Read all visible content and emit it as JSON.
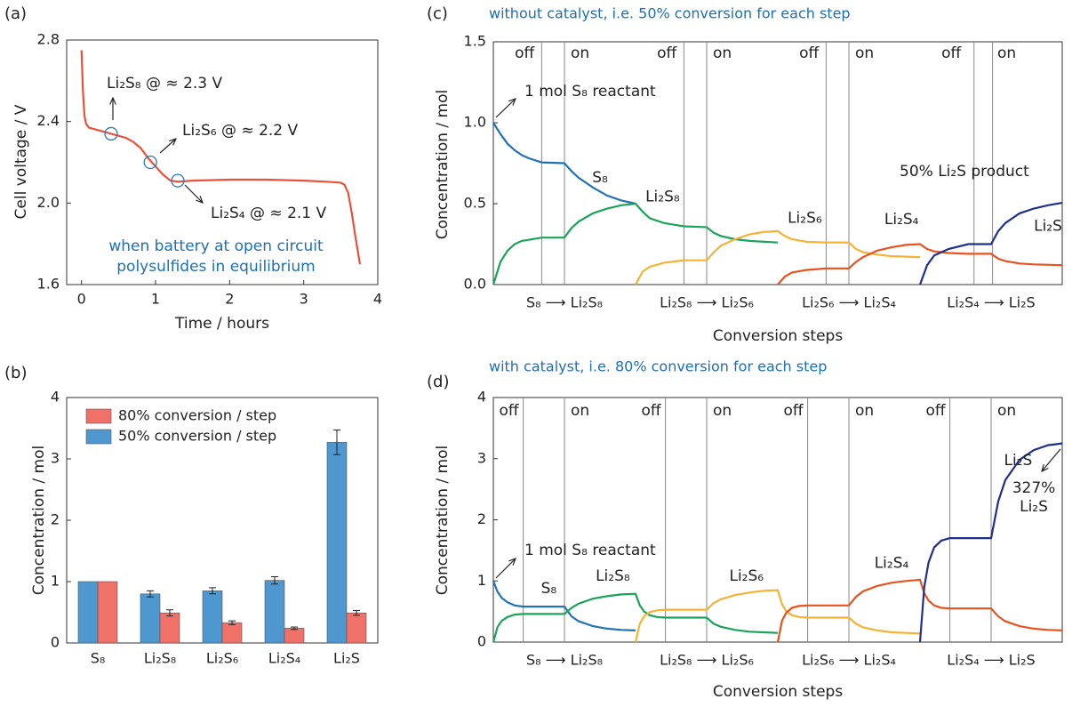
{
  "chart_data": [
    {
      "type": "line",
      "panel_label": "(a)",
      "xlabel": "Time / hours",
      "ylabel": "Cell voltage / V",
      "xlim": [
        -0.2,
        4
      ],
      "ylim": [
        1.6,
        2.8
      ],
      "xticks": [
        0,
        1,
        2,
        3,
        4
      ],
      "yticks": [
        1.6,
        {
          "value": 2.0,
          "label": "2.0"
        },
        2.4,
        2.8
      ],
      "series": [
        {
          "color": "#e8513a",
          "x": [
            0,
            0.02,
            0.04,
            0.06,
            0.1,
            0.2,
            0.3,
            0.4,
            0.5,
            0.6,
            0.7,
            0.8,
            0.9,
            1.0,
            1.1,
            1.2,
            1.3,
            1.5,
            2.0,
            2.5,
            3.0,
            3.3,
            3.5,
            3.55,
            3.6,
            3.65,
            3.7,
            3.76
          ],
          "values": [
            2.75,
            2.55,
            2.43,
            2.39,
            2.37,
            2.36,
            2.35,
            2.34,
            2.33,
            2.32,
            2.3,
            2.27,
            2.22,
            2.18,
            2.14,
            2.11,
            2.105,
            2.11,
            2.115,
            2.115,
            2.11,
            2.105,
            2.1,
            2.09,
            2.05,
            1.95,
            1.83,
            1.7
          ]
        }
      ],
      "markers": {
        "color": "#2a7ab8",
        "x": [
          0.4,
          0.93,
          1.3
        ],
        "values": [
          2.34,
          2.2,
          2.11
        ]
      },
      "annotations": [
        "Li₂S₈ @ ≈ 2.3 V",
        "Li₂S₆ @ ≈ 2.2 V",
        "Li₂S₄ @ ≈ 2.1 V",
        "when battery at open circuit",
        "polysulfides in equilibrium"
      ]
    },
    {
      "type": "bar",
      "panel_label": "(b)",
      "ylabel": "Concentration / mol",
      "categories": [
        "S₈",
        "Li₂S₈",
        "Li₂S₆",
        "Li₂S₄",
        "Li₂S"
      ],
      "ylim": [
        0,
        4
      ],
      "yticks": [
        0,
        1,
        2,
        3,
        4
      ],
      "legend": "upper left",
      "series": [
        {
          "name": "50% conversion / step",
          "color": "#4f97cf",
          "values": [
            1.0,
            0.8,
            0.85,
            1.02,
            3.27
          ],
          "errors": [
            null,
            0.05,
            0.05,
            0.06,
            0.2
          ]
        },
        {
          "name": "80% conversion / step",
          "color": "#f07168",
          "values": [
            1.0,
            0.49,
            0.33,
            0.24,
            0.49
          ],
          "errors": [
            null,
            0.05,
            0.03,
            0.02,
            0.04
          ]
        }
      ]
    },
    {
      "type": "line",
      "panel_label": "(c)",
      "subtitle": "without catalyst, i.e. 50% conversion for each step",
      "xlabel": "Conversion steps",
      "ylabel": "Concentration / mol",
      "xlim": [
        0,
        4
      ],
      "ylim": [
        0,
        1.5
      ],
      "yticks": [
        {
          "value": 0,
          "label": "0.0"
        },
        0.5,
        {
          "value": 1,
          "label": "1.0"
        },
        1.5
      ],
      "dividers": [
        0.34,
        0.5,
        1.34,
        1.5,
        2.34,
        2.5,
        3.38,
        3.51
      ],
      "phases": [
        "off",
        "on",
        "off",
        "on",
        "off",
        "on",
        "off",
        "on"
      ],
      "step_labels": [
        "S₈ ⟶ Li₂S₈",
        "Li₂S₈ ⟶ Li₂S₆",
        "Li₂S₆ ⟶ Li₂S₄",
        "Li₂S₄ ⟶ Li₂S"
      ],
      "series": [
        {
          "name": "S₈",
          "color": "#2272b5",
          "x": [
            0,
            0.05,
            0.1,
            0.15,
            0.2,
            0.25,
            0.34,
            0.5,
            0.55,
            0.6,
            0.7,
            0.8,
            0.9,
            1.0
          ],
          "values": [
            1.0,
            0.93,
            0.87,
            0.83,
            0.8,
            0.78,
            0.755,
            0.75,
            0.7,
            0.66,
            0.6,
            0.55,
            0.52,
            0.5
          ]
        },
        {
          "name": "Li₂S₈",
          "color": "#1aa35a",
          "x": [
            0,
            0.05,
            0.1,
            0.15,
            0.2,
            0.34,
            0.5,
            0.55,
            0.6,
            0.7,
            0.8,
            0.9,
            1.0,
            1.05,
            1.1,
            1.2,
            1.34,
            1.5,
            1.55,
            1.6,
            1.7,
            1.8,
            2.0
          ],
          "values": [
            0,
            0.14,
            0.21,
            0.25,
            0.27,
            0.29,
            0.29,
            0.35,
            0.39,
            0.44,
            0.47,
            0.49,
            0.5,
            0.45,
            0.41,
            0.38,
            0.36,
            0.355,
            0.32,
            0.3,
            0.28,
            0.27,
            0.26
          ]
        },
        {
          "name": "Li₂S₆",
          "color": "#f5b335",
          "x": [
            1.0,
            1.05,
            1.1,
            1.2,
            1.34,
            1.5,
            1.55,
            1.6,
            1.7,
            1.8,
            1.9,
            2.0,
            2.05,
            2.1,
            2.2,
            2.34,
            2.5,
            2.55,
            2.6,
            2.7,
            2.8,
            3.0
          ],
          "values": [
            0,
            0.08,
            0.11,
            0.135,
            0.15,
            0.15,
            0.2,
            0.24,
            0.28,
            0.31,
            0.325,
            0.33,
            0.3,
            0.28,
            0.265,
            0.26,
            0.26,
            0.22,
            0.2,
            0.185,
            0.175,
            0.17
          ]
        },
        {
          "name": "Li₂S₄",
          "color": "#e5531f",
          "x": [
            2.0,
            2.05,
            2.1,
            2.2,
            2.34,
            2.5,
            2.55,
            2.6,
            2.7,
            2.8,
            2.9,
            3.0,
            3.05,
            3.1,
            3.2,
            3.34,
            3.5,
            3.55,
            3.6,
            3.7,
            3.8,
            4.0
          ],
          "values": [
            0,
            0.05,
            0.075,
            0.09,
            0.1,
            0.1,
            0.14,
            0.17,
            0.21,
            0.23,
            0.245,
            0.25,
            0.22,
            0.205,
            0.195,
            0.19,
            0.19,
            0.16,
            0.145,
            0.13,
            0.125,
            0.12
          ]
        },
        {
          "name": "Li₂S",
          "color": "#1f2f8a",
          "x": [
            3.0,
            3.05,
            3.1,
            3.2,
            3.34,
            3.5,
            3.55,
            3.6,
            3.7,
            3.8,
            3.9,
            4.0
          ],
          "values": [
            0,
            0.12,
            0.18,
            0.22,
            0.25,
            0.25,
            0.33,
            0.38,
            0.44,
            0.47,
            0.49,
            0.505
          ]
        }
      ],
      "annotations": [
        "1 mol S₈ reactant",
        "50% Li₂S product"
      ]
    },
    {
      "type": "line",
      "panel_label": "(d)",
      "subtitle": "with catalyst, i.e. 80% conversion for each step",
      "xlabel": "Conversion steps",
      "ylabel": "Concentration / mol",
      "xlim": [
        0,
        4
      ],
      "ylim": [
        0,
        4
      ],
      "yticks": [
        0,
        1,
        2,
        3,
        4
      ],
      "dividers": [
        0.21,
        0.5,
        1.21,
        1.5,
        2.21,
        2.5,
        3.21,
        3.5
      ],
      "phases": [
        "off",
        "on",
        "off",
        "on",
        "off",
        "on",
        "off",
        "on"
      ],
      "step_labels": [
        "S₈ ⟶ Li₂S₈",
        "Li₂S₈ ⟶ Li₂S₆",
        "Li₂S₆ ⟶ Li₂S₄",
        "Li₂S₄ ⟶ Li₂S"
      ],
      "series": [
        {
          "name": "S₈",
          "color": "#2272b5",
          "x": [
            0,
            0.03,
            0.06,
            0.1,
            0.15,
            0.21,
            0.5,
            0.55,
            0.6,
            0.7,
            0.8,
            0.9,
            1.0
          ],
          "values": [
            1.0,
            0.82,
            0.72,
            0.65,
            0.6,
            0.58,
            0.58,
            0.42,
            0.34,
            0.26,
            0.22,
            0.2,
            0.19
          ]
        },
        {
          "name": "Li₂S₈",
          "color": "#1aa35a",
          "x": [
            0,
            0.03,
            0.06,
            0.1,
            0.15,
            0.21,
            0.5,
            0.55,
            0.6,
            0.7,
            0.8,
            0.9,
            1.0,
            1.03,
            1.06,
            1.1,
            1.15,
            1.21,
            1.5,
            1.55,
            1.6,
            1.7,
            1.8,
            1.9,
            2.0
          ],
          "values": [
            0,
            0.25,
            0.35,
            0.41,
            0.45,
            0.46,
            0.46,
            0.56,
            0.63,
            0.71,
            0.75,
            0.78,
            0.79,
            0.6,
            0.5,
            0.44,
            0.41,
            0.4,
            0.4,
            0.3,
            0.25,
            0.2,
            0.17,
            0.16,
            0.15
          ]
        },
        {
          "name": "Li₂S₆",
          "color": "#f5b335",
          "x": [
            1.0,
            1.03,
            1.06,
            1.1,
            1.15,
            1.21,
            1.5,
            1.55,
            1.6,
            1.7,
            1.8,
            1.9,
            2.0,
            2.03,
            2.06,
            2.1,
            2.15,
            2.21,
            2.5,
            2.55,
            2.6,
            2.7,
            2.8,
            2.9,
            3.0
          ],
          "values": [
            0,
            0.3,
            0.42,
            0.49,
            0.52,
            0.53,
            0.53,
            0.64,
            0.7,
            0.77,
            0.81,
            0.84,
            0.85,
            0.62,
            0.5,
            0.44,
            0.41,
            0.4,
            0.4,
            0.3,
            0.24,
            0.19,
            0.16,
            0.15,
            0.14
          ]
        },
        {
          "name": "Li₂S₄",
          "color": "#e5531f",
          "x": [
            2.0,
            2.03,
            2.06,
            2.1,
            2.15,
            2.21,
            2.5,
            2.55,
            2.6,
            2.7,
            2.8,
            2.9,
            3.0,
            3.03,
            3.06,
            3.1,
            3.15,
            3.21,
            3.5,
            3.55,
            3.6,
            3.7,
            3.8,
            3.9,
            4.0
          ],
          "values": [
            0,
            0.35,
            0.48,
            0.56,
            0.59,
            0.6,
            0.6,
            0.74,
            0.83,
            0.92,
            0.97,
            1.0,
            1.02,
            0.8,
            0.68,
            0.6,
            0.56,
            0.55,
            0.55,
            0.42,
            0.34,
            0.26,
            0.22,
            0.2,
            0.19
          ]
        },
        {
          "name": "Li₂S",
          "color": "#1f2f8a",
          "x": [
            3.0,
            3.03,
            3.06,
            3.1,
            3.15,
            3.21,
            3.5,
            3.55,
            3.6,
            3.7,
            3.8,
            3.9,
            4.0
          ],
          "values": [
            0,
            0.9,
            1.3,
            1.55,
            1.66,
            1.7,
            1.7,
            2.3,
            2.65,
            2.98,
            3.14,
            3.22,
            3.25
          ]
        }
      ],
      "annotations": [
        "1 mol S₈ reactant",
        "327%",
        "Li₂S"
      ]
    }
  ]
}
